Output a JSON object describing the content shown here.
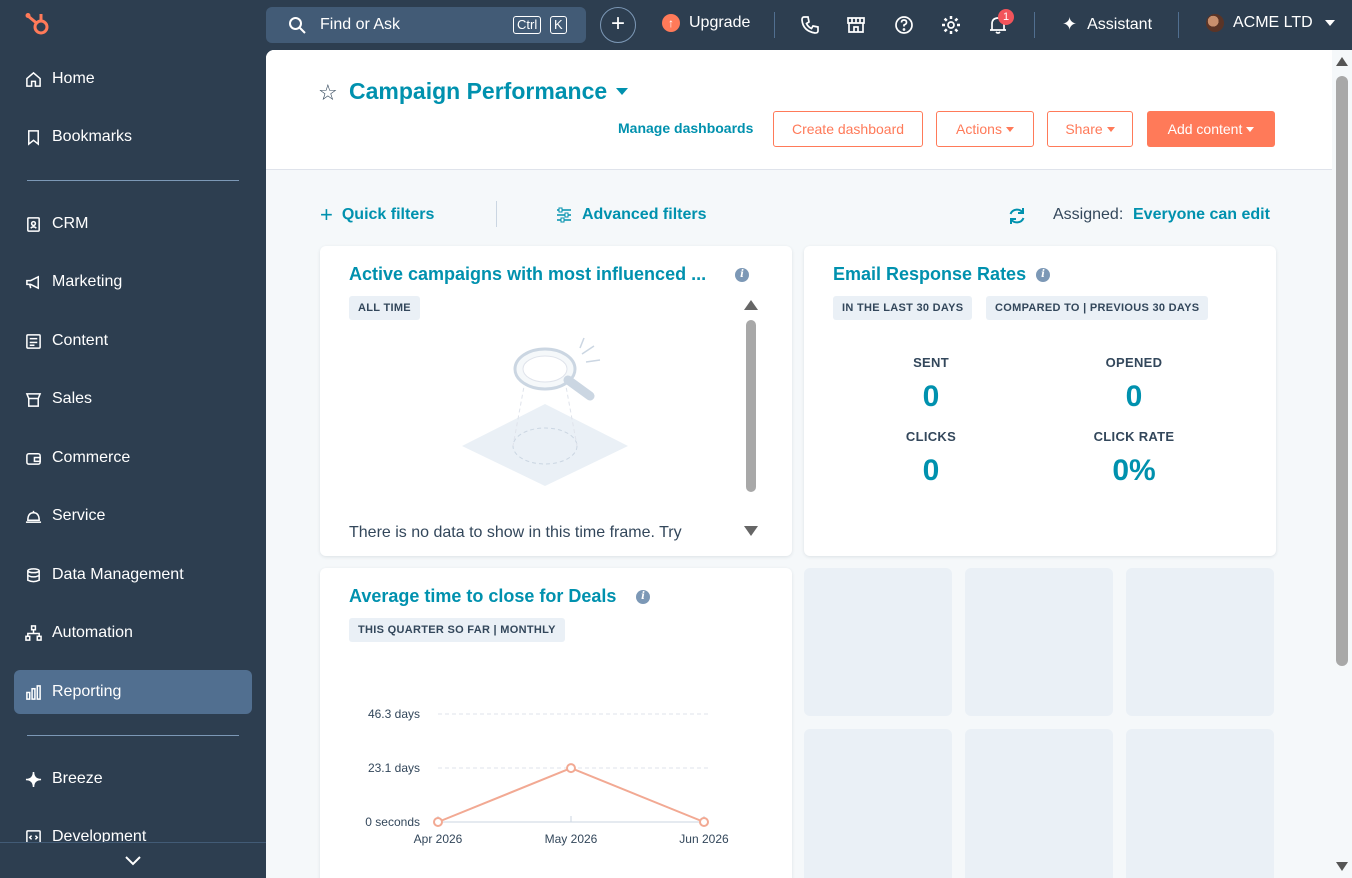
{
  "sidebar": {
    "items": [
      {
        "label": "Home",
        "icon": "home-icon"
      },
      {
        "label": "Bookmarks",
        "icon": "bookmark-icon"
      },
      {
        "label": "CRM",
        "icon": "crm-icon"
      },
      {
        "label": "Marketing",
        "icon": "megaphone-icon"
      },
      {
        "label": "Content",
        "icon": "content-icon"
      },
      {
        "label": "Sales",
        "icon": "sales-icon"
      },
      {
        "label": "Commerce",
        "icon": "wallet-icon"
      },
      {
        "label": "Service",
        "icon": "bell-service-icon"
      },
      {
        "label": "Data Management",
        "icon": "database-icon"
      },
      {
        "label": "Automation",
        "icon": "automation-icon"
      },
      {
        "label": "Reporting",
        "icon": "bar-chart-icon",
        "active": true
      },
      {
        "label": "Breeze",
        "icon": "sparkle-icon"
      },
      {
        "label": "Development",
        "icon": "code-icon"
      }
    ]
  },
  "topbar": {
    "search_placeholder": "Find or Ask",
    "kbd_ctrl": "Ctrl",
    "kbd_k": "K",
    "plus": "+",
    "upgrade": "Upgrade",
    "notification_count": "1",
    "assistant": "Assistant",
    "account": "ACME LTD"
  },
  "header": {
    "title": "Campaign Performance",
    "manage": "Manage dashboards",
    "create": "Create dashboard",
    "actions": "Actions",
    "share": "Share",
    "add_content": "Add content"
  },
  "filters": {
    "quick": "Quick filters",
    "advanced": "Advanced filters",
    "assigned_label": "Assigned:",
    "assigned_value": "Everyone can edit"
  },
  "cards": {
    "campaigns": {
      "title": "Active campaigns with most influenced ...",
      "tag": "ALL TIME",
      "empty_text": "There is no data to show in this time frame. Try"
    },
    "email": {
      "title": "Email Response Rates",
      "tag1": "IN THE LAST 30 DAYS",
      "tag2": "COMPARED TO | PREVIOUS 30 DAYS",
      "sent_label": "SENT",
      "sent_value": "0",
      "opened_label": "OPENED",
      "opened_value": "0",
      "clicks_label": "CLICKS",
      "clicks_value": "0",
      "rate_label": "CLICK RATE",
      "rate_value": "0%"
    },
    "deals": {
      "title": "Average time to close for Deals",
      "tag": "THIS QUARTER SO FAR | MONTHLY"
    }
  },
  "chart_data": {
    "type": "line",
    "categories": [
      "Apr 2026",
      "May 2026",
      "Jun 2026"
    ],
    "series": [
      {
        "values": [
          0,
          23.1,
          0
        ]
      }
    ],
    "y_ticks": [
      "0 seconds",
      "23.1 days",
      "46.3 days"
    ],
    "ylim": [
      0,
      46.3
    ],
    "grid": true,
    "color": "#f2a993"
  },
  "colors": {
    "accent": "#0091ae",
    "brand": "#ff7a59",
    "sidebar": "#2d3e50"
  }
}
